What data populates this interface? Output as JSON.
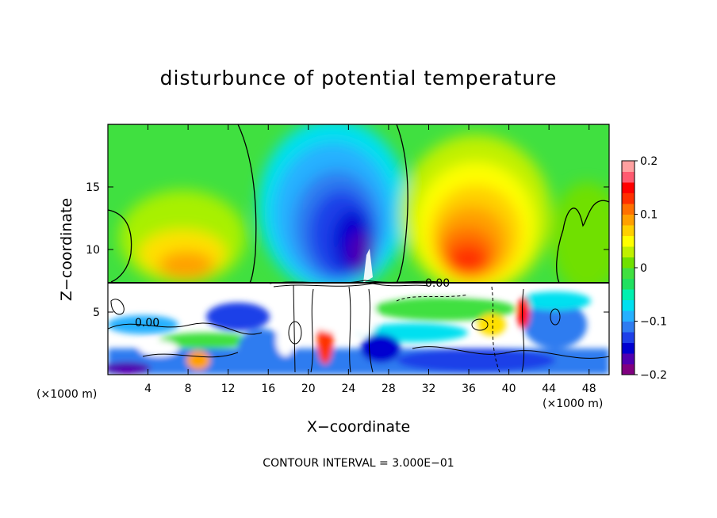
{
  "chart_data": {
    "type": "heatmap",
    "title": "disturbunce of potential temperature",
    "xlabel": "X−coordinate",
    "ylabel": "Z−coordinate",
    "x_unit_label_left": "(×1000 m)",
    "x_unit_label_right": "(×1000 m)",
    "contour_interval": "CONTOUR INTERVAL = 3.000E−01",
    "contour_label": "0.00",
    "xlim": [
      0,
      50
    ],
    "ylim": [
      0,
      20
    ],
    "x_ticks": [
      4,
      8,
      12,
      16,
      20,
      24,
      28,
      32,
      36,
      40,
      44,
      48
    ],
    "y_ticks": [
      5,
      10,
      15
    ],
    "colorbar": {
      "range": [
        -0.2,
        0.2
      ],
      "ticks": [
        {
          "value": 0.2,
          "label": "0.2"
        },
        {
          "value": 0.1,
          "label": "0.1"
        },
        {
          "value": 0.0,
          "label": "0"
        },
        {
          "value": -0.1,
          "label": "−0.1"
        },
        {
          "value": -0.2,
          "label": "−0.2"
        }
      ],
      "colors": [
        "#800080",
        "#5000b0",
        "#0000d0",
        "#1e40e8",
        "#2f7cf0",
        "#25b0ff",
        "#00e0f0",
        "#00f0b0",
        "#20e060",
        "#40e040",
        "#70e000",
        "#c0f000",
        "#ffff00",
        "#ffd000",
        "#ffa000",
        "#ff7000",
        "#ff3000",
        "#ff0000",
        "#ff5a70",
        "#ffa0a0"
      ]
    },
    "features": [
      {
        "kind": "cold_anomaly",
        "x_center": 23,
        "z_center": 11,
        "min_value": -0.2
      },
      {
        "kind": "warm_anomaly",
        "x_center": 37,
        "z_center": 10,
        "max_value": 0.12
      },
      {
        "kind": "warm_anomaly",
        "x_center": 9,
        "z_center": 10,
        "max_value": 0.08
      },
      {
        "kind": "turbulent_layer",
        "z_range": [
          0,
          7.3
        ]
      }
    ]
  }
}
